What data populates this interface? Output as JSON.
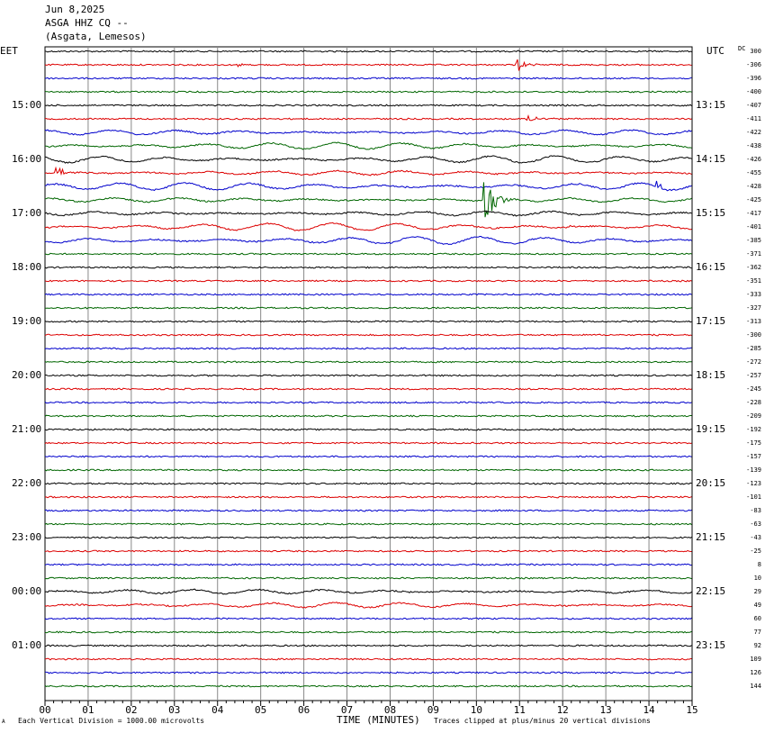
{
  "header": {
    "date": "Jun 8,2025",
    "station": "ASGA HHZ CQ --",
    "location": "(Asgata, Lemesos)"
  },
  "left_tz": "EET",
  "right_tz": "UTC",
  "dc_label": "DC",
  "footer": {
    "scale_note": "Each Vertical Division = 1000.00 microvolts",
    "axis_title": "TIME (MINUTES)",
    "clip_note": "Traces clipped at plus/minus 20 vertical divisions",
    "corner_mark": "A"
  },
  "colors": {
    "cycle": [
      "#000000",
      "#dd0000",
      "#0000cc",
      "#006600"
    ],
    "grid": "#888888"
  },
  "chart_data": {
    "type": "line",
    "x_ticks": [
      "00",
      "01",
      "02",
      "03",
      "04",
      "05",
      "06",
      "07",
      "08",
      "09",
      "10",
      "11",
      "12",
      "13",
      "14",
      "15"
    ],
    "x_range_minutes": [
      0,
      15
    ],
    "trace_count": 48,
    "left_hour_labels": [
      "15:00",
      "16:00",
      "17:00",
      "18:00",
      "19:00",
      "20:00",
      "21:00",
      "22:00",
      "23:00",
      "00:00",
      "01:00"
    ],
    "right_hour_labels": [
      "13:15",
      "14:15",
      "15:15",
      "16:15",
      "17:15",
      "18:15",
      "19:15",
      "20:15",
      "21:15",
      "22:15",
      "23:15"
    ],
    "dc_offsets": [
      "300",
      "-306",
      "-396",
      "-400",
      "-407",
      "-411",
      "-422",
      "-438",
      "-426",
      "-455",
      "-428",
      "-425",
      "-417",
      "-401",
      "-385",
      "-371",
      "-362",
      "-351",
      "-333",
      "-327",
      "-313",
      "-300",
      "-285",
      "-272",
      "-257",
      "-245",
      "-228",
      "-209",
      "-192",
      "-175",
      "-157",
      "-139",
      "-123",
      "-101",
      "-83",
      "-63",
      "-43",
      "-25",
      "8",
      "10",
      "29",
      "49",
      "60",
      "77",
      "92",
      "109",
      "126",
      "144"
    ],
    "events": [
      {
        "trace": 1,
        "minute": 10.95,
        "amp": 8,
        "dur": 0.5
      },
      {
        "trace": 1,
        "minute": 4.5,
        "amp": 2,
        "dur": 0.3
      },
      {
        "trace": 5,
        "minute": 11.2,
        "amp": 6,
        "dur": 0.6
      },
      {
        "trace": 9,
        "minute": 0.3,
        "amp": 10,
        "dur": 0.4
      },
      {
        "trace": 10,
        "minute": 14.2,
        "amp": 6,
        "dur": 0.4
      },
      {
        "trace": 11,
        "minute": 10.2,
        "amp": 28,
        "dur": 0.7
      },
      {
        "trace": 13,
        "minute": 12.2,
        "amp": 2,
        "dur": 0.3
      }
    ],
    "microseism_traces": [
      6,
      7,
      8,
      9,
      10,
      11,
      12,
      13,
      14,
      40,
      41
    ]
  }
}
